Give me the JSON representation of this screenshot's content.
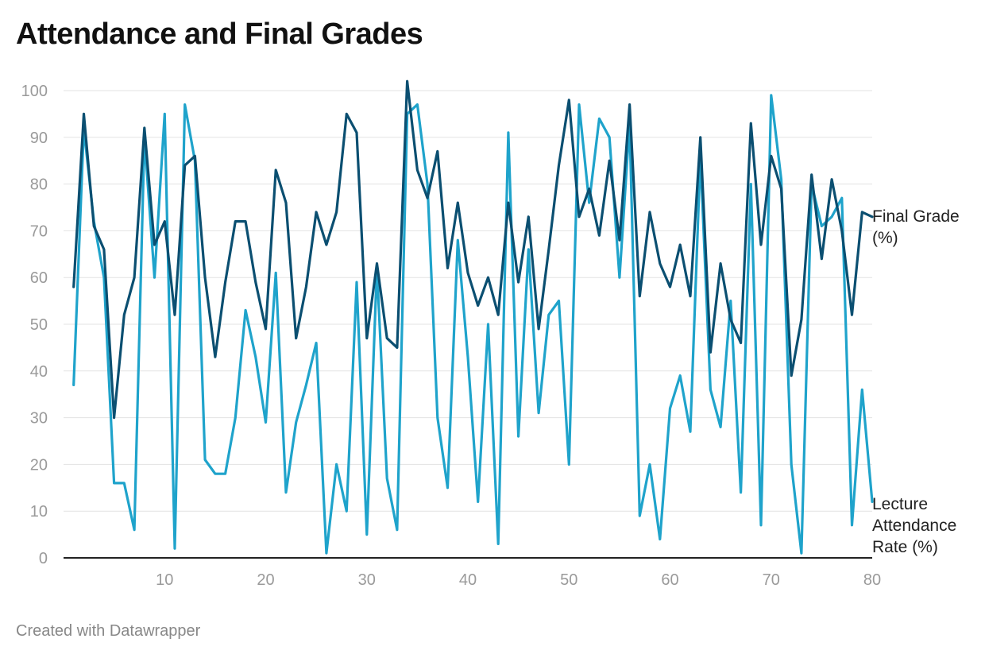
{
  "header": {
    "title": "Attendance and Final Grades"
  },
  "footer": {
    "credit": "Created with Datawrapper"
  },
  "chart_data": {
    "type": "line",
    "xlim": [
      0,
      80
    ],
    "ylim": [
      0,
      100
    ],
    "grid": true,
    "x_ticks": [
      10,
      20,
      30,
      40,
      50,
      60,
      70,
      80
    ],
    "y_ticks": [
      0,
      10,
      20,
      30,
      40,
      50,
      60,
      70,
      80,
      90,
      100
    ],
    "x": [
      1,
      2,
      3,
      4,
      5,
      6,
      7,
      8,
      9,
      10,
      11,
      12,
      13,
      14,
      15,
      16,
      17,
      18,
      19,
      20,
      21,
      22,
      23,
      24,
      25,
      26,
      27,
      28,
      29,
      30,
      31,
      32,
      33,
      34,
      35,
      36,
      37,
      38,
      39,
      40,
      41,
      42,
      43,
      44,
      45,
      46,
      47,
      48,
      49,
      50,
      51,
      52,
      53,
      54,
      55,
      56,
      57,
      58,
      59,
      60,
      61,
      62,
      63,
      64,
      65,
      66,
      67,
      68,
      69,
      70,
      71,
      72,
      73,
      74,
      75,
      76,
      77,
      78,
      79,
      80
    ],
    "series": [
      {
        "name": "Final Grade (%)",
        "label_lines": [
          "Final Grade",
          "(%)"
        ],
        "color": "#0b4f71",
        "values": [
          58,
          95,
          71,
          66,
          30,
          52,
          60,
          92,
          67,
          72,
          52,
          84,
          86,
          60,
          43,
          59,
          72,
          72,
          59,
          49,
          83,
          76,
          47,
          58,
          74,
          67,
          74,
          95,
          91,
          47,
          63,
          47,
          45,
          102,
          83,
          77,
          87,
          62,
          76,
          61,
          54,
          60,
          52,
          76,
          59,
          73,
          49,
          66,
          84,
          98,
          73,
          79,
          69,
          85,
          68,
          97,
          56,
          74,
          63,
          58,
          67,
          56,
          90,
          44,
          63,
          51,
          46,
          93,
          67,
          86,
          79,
          39,
          51,
          82,
          64,
          81,
          70,
          52,
          74,
          73
        ]
      },
      {
        "name": "Lecture Attendance Rate (%)",
        "label_lines": [
          "Lecture",
          "Attendance",
          "Rate (%)"
        ],
        "color": "#1fa3cb",
        "values": [
          37,
          92,
          72,
          60,
          16,
          16,
          6,
          90,
          60,
          95,
          2,
          97,
          85,
          21,
          18,
          18,
          30,
          53,
          43,
          29,
          61,
          14,
          29,
          37,
          46,
          1,
          20,
          10,
          59,
          5,
          62,
          17,
          6,
          95,
          97,
          80,
          30,
          15,
          68,
          43,
          12,
          50,
          3,
          91,
          26,
          66,
          31,
          52,
          55,
          20,
          97,
          76,
          94,
          90,
          60,
          93,
          9,
          20,
          4,
          32,
          39,
          27,
          86,
          36,
          28,
          55,
          14,
          80,
          7,
          99,
          81,
          20,
          1,
          80,
          71,
          73,
          77,
          7,
          36,
          12
        ]
      }
    ]
  }
}
